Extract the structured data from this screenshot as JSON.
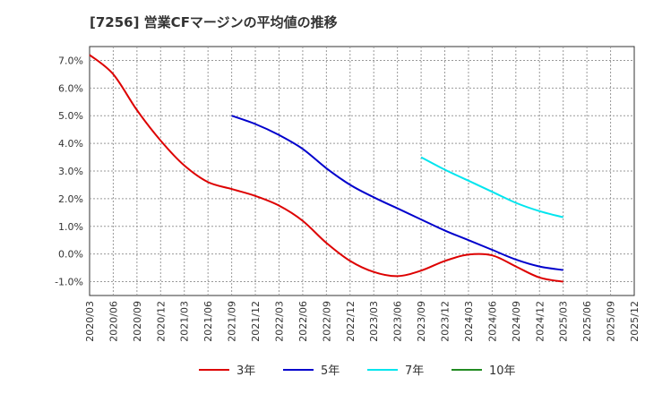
{
  "chart_data": {
    "type": "line",
    "title": "[7256]  営業CFマージンの平均値の推移",
    "xlabel": "",
    "ylabel": "",
    "ylim": [
      -1.5,
      7.5
    ],
    "yticks": [
      -1.0,
      0.0,
      1.0,
      2.0,
      3.0,
      4.0,
      5.0,
      6.0,
      7.0
    ],
    "ytick_labels": [
      "-1.0%",
      "0.0%",
      "1.0%",
      "2.0%",
      "3.0%",
      "4.0%",
      "5.0%",
      "6.0%",
      "7.0%"
    ],
    "categories": [
      "2020/03",
      "2020/06",
      "2020/09",
      "2020/12",
      "2021/03",
      "2021/06",
      "2021/09",
      "2021/12",
      "2022/03",
      "2022/06",
      "2022/09",
      "2022/12",
      "2023/03",
      "2023/06",
      "2023/09",
      "2023/12",
      "2024/03",
      "2024/06",
      "2024/09",
      "2024/12",
      "2025/03",
      "2025/06",
      "2025/09",
      "2025/12"
    ],
    "grid": true,
    "legend_position": "bottom",
    "series": [
      {
        "name": "3年",
        "color": "#dd0000",
        "values": [
          7.2,
          6.5,
          5.2,
          4.1,
          3.2,
          2.6,
          2.35,
          2.1,
          1.75,
          1.2,
          0.4,
          -0.25,
          -0.65,
          -0.8,
          -0.6,
          -0.25,
          -0.02,
          -0.05,
          -0.45,
          -0.85,
          -1.0,
          null,
          null,
          null
        ]
      },
      {
        "name": "5年",
        "color": "#0000cc",
        "values": [
          null,
          null,
          null,
          null,
          null,
          null,
          5.0,
          4.7,
          4.3,
          3.8,
          3.1,
          2.5,
          2.05,
          1.65,
          1.25,
          0.85,
          0.5,
          0.15,
          -0.2,
          -0.45,
          -0.58,
          null,
          null,
          null
        ]
      },
      {
        "name": "7年",
        "color": "#00e5ee",
        "values": [
          null,
          null,
          null,
          null,
          null,
          null,
          null,
          null,
          null,
          null,
          null,
          null,
          null,
          null,
          3.5,
          3.05,
          2.65,
          2.25,
          1.85,
          1.55,
          1.33,
          null,
          null,
          null
        ]
      },
      {
        "name": "10年",
        "color": "#228b22",
        "values": [
          null,
          null,
          null,
          null,
          null,
          null,
          null,
          null,
          null,
          null,
          null,
          null,
          null,
          null,
          null,
          null,
          null,
          null,
          null,
          null,
          null,
          null,
          null,
          null
        ]
      }
    ]
  }
}
